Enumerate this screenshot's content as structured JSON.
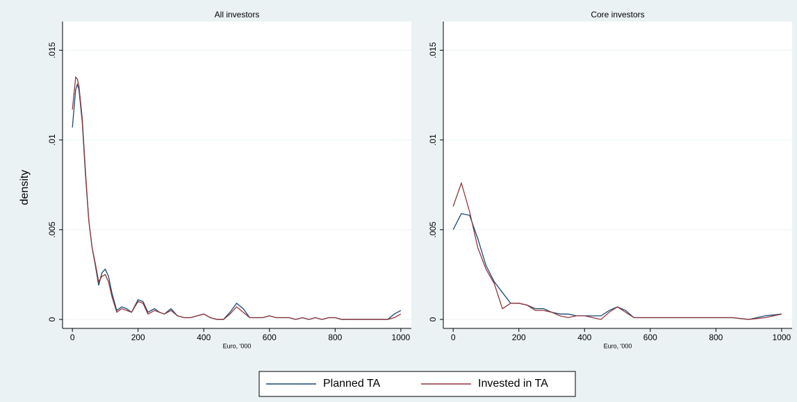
{
  "y_label": "density",
  "chart_data": [
    {
      "type": "line",
      "title": "All investors",
      "xlabel": "Euro, '000",
      "x": [
        0,
        10,
        15,
        20,
        30,
        40,
        50,
        60,
        70,
        80,
        90,
        100,
        110,
        120,
        135,
        150,
        165,
        180,
        200,
        215,
        230,
        250,
        265,
        280,
        300,
        320,
        340,
        360,
        380,
        400,
        420,
        440,
        460,
        480,
        500,
        520,
        540,
        560,
        580,
        600,
        620,
        640,
        660,
        680,
        700,
        720,
        740,
        760,
        780,
        800,
        820,
        840,
        860,
        880,
        900,
        920,
        940,
        960,
        980,
        1000
      ],
      "series": [
        {
          "name": "Planned TA",
          "color": "#1a476f",
          "values": [
            0.0107,
            0.0128,
            0.0131,
            0.0128,
            0.011,
            0.008,
            0.0055,
            0.004,
            0.003,
            0.0019,
            0.0026,
            0.0028,
            0.0024,
            0.0015,
            0.0005,
            0.0007,
            0.0006,
            0.0004,
            0.0011,
            0.001,
            0.0004,
            0.0006,
            0.0004,
            0.0003,
            0.0006,
            0.0002,
            0.0001,
            0.0001,
            0.0002,
            0.0003,
            0.0001,
            0,
            0,
            0.0004,
            0.0009,
            0.0006,
            0.0001,
            0.0001,
            0.0001,
            0.0002,
            0.0001,
            0.0001,
            0.0001,
            0,
            0.0001,
            0,
            0.0001,
            0,
            0.0001,
            0.0001,
            0,
            0,
            0,
            0,
            0,
            0,
            0,
            0,
            0.0003,
            0.0005
          ]
        },
        {
          "name": "Invested in TA",
          "color": "#90353b",
          "values": [
            0.0117,
            0.0135,
            0.0134,
            0.013,
            0.0112,
            0.0082,
            0.0055,
            0.004,
            0.0031,
            0.0021,
            0.0024,
            0.0025,
            0.0021,
            0.0013,
            0.0004,
            0.0006,
            0.0005,
            0.0004,
            0.001,
            0.0009,
            0.0003,
            0.0005,
            0.0004,
            0.0003,
            0.0005,
            0.0002,
            0.0001,
            0.0001,
            0.0002,
            0.0003,
            0.0001,
            0,
            0,
            0.0003,
            0.0007,
            0.0004,
            0.0001,
            0.0001,
            0.0001,
            0.0002,
            0.0001,
            0.0001,
            0.0001,
            0,
            0.0001,
            0,
            0.0001,
            0,
            0.0001,
            0.0001,
            0,
            0,
            0,
            0,
            0,
            0,
            0,
            0,
            0.0001,
            0.0003
          ]
        }
      ],
      "xlim": [
        -30,
        1032
      ],
      "xticks": [
        0,
        200,
        400,
        600,
        800,
        1000
      ],
      "ylim": [
        -0.0005,
        0.0166
      ],
      "yticks": [
        0,
        {
          "value": 0.005,
          "label": ".005"
        },
        {
          "value": 0.01,
          "label": ".01"
        },
        {
          "value": 0.015,
          "label": ".015"
        }
      ],
      "grid": true
    },
    {
      "type": "line",
      "title": "Core investors",
      "xlabel": "Euro, '000",
      "x": [
        0,
        25,
        50,
        75,
        100,
        125,
        150,
        175,
        200,
        225,
        250,
        275,
        300,
        325,
        350,
        375,
        400,
        425,
        450,
        475,
        500,
        525,
        550,
        575,
        600,
        650,
        700,
        750,
        800,
        850,
        900,
        950,
        1000
      ],
      "series": [
        {
          "color": "#1a476f",
          "values": [
            0.005,
            0.0059,
            0.0058,
            0.0045,
            0.003,
            0.0021,
            0.0015,
            0.0009,
            0.0009,
            0.0008,
            0.0006,
            0.0006,
            0.0004,
            0.0003,
            0.0003,
            0.0002,
            0.0002,
            0.0002,
            0.0002,
            0.0005,
            0.0007,
            0.0005,
            0.0001,
            0.0001,
            0.0001,
            0.0001,
            0.0001,
            0.0001,
            0.0001,
            0.0001,
            0,
            0.0002,
            0.0003
          ]
        },
        {
          "color": "#90353b",
          "values": [
            0.0063,
            0.0076,
            0.006,
            0.004,
            0.0028,
            0.002,
            0.0006,
            0.0009,
            0.0009,
            0.0008,
            0.0005,
            0.0005,
            0.0004,
            0.0002,
            0.0001,
            0.0002,
            0.0002,
            0.0001,
            0,
            0.0004,
            0.0007,
            0.0004,
            0.0001,
            0.0001,
            0.0001,
            0.0001,
            0.0001,
            0.0001,
            0.0001,
            0.0001,
            0,
            0.0001,
            0.0003
          ]
        }
      ],
      "xlim": [
        -30,
        1032
      ],
      "xticks": [
        0,
        200,
        400,
        600,
        800,
        1000
      ],
      "ylim": [
        -0.0005,
        0.0166
      ],
      "yticks": [
        0,
        {
          "value": 0.005,
          "label": ".005"
        },
        {
          "value": 0.01,
          "label": ".01"
        },
        {
          "value": 0.015,
          "label": ".015"
        }
      ],
      "grid": true
    }
  ]
}
